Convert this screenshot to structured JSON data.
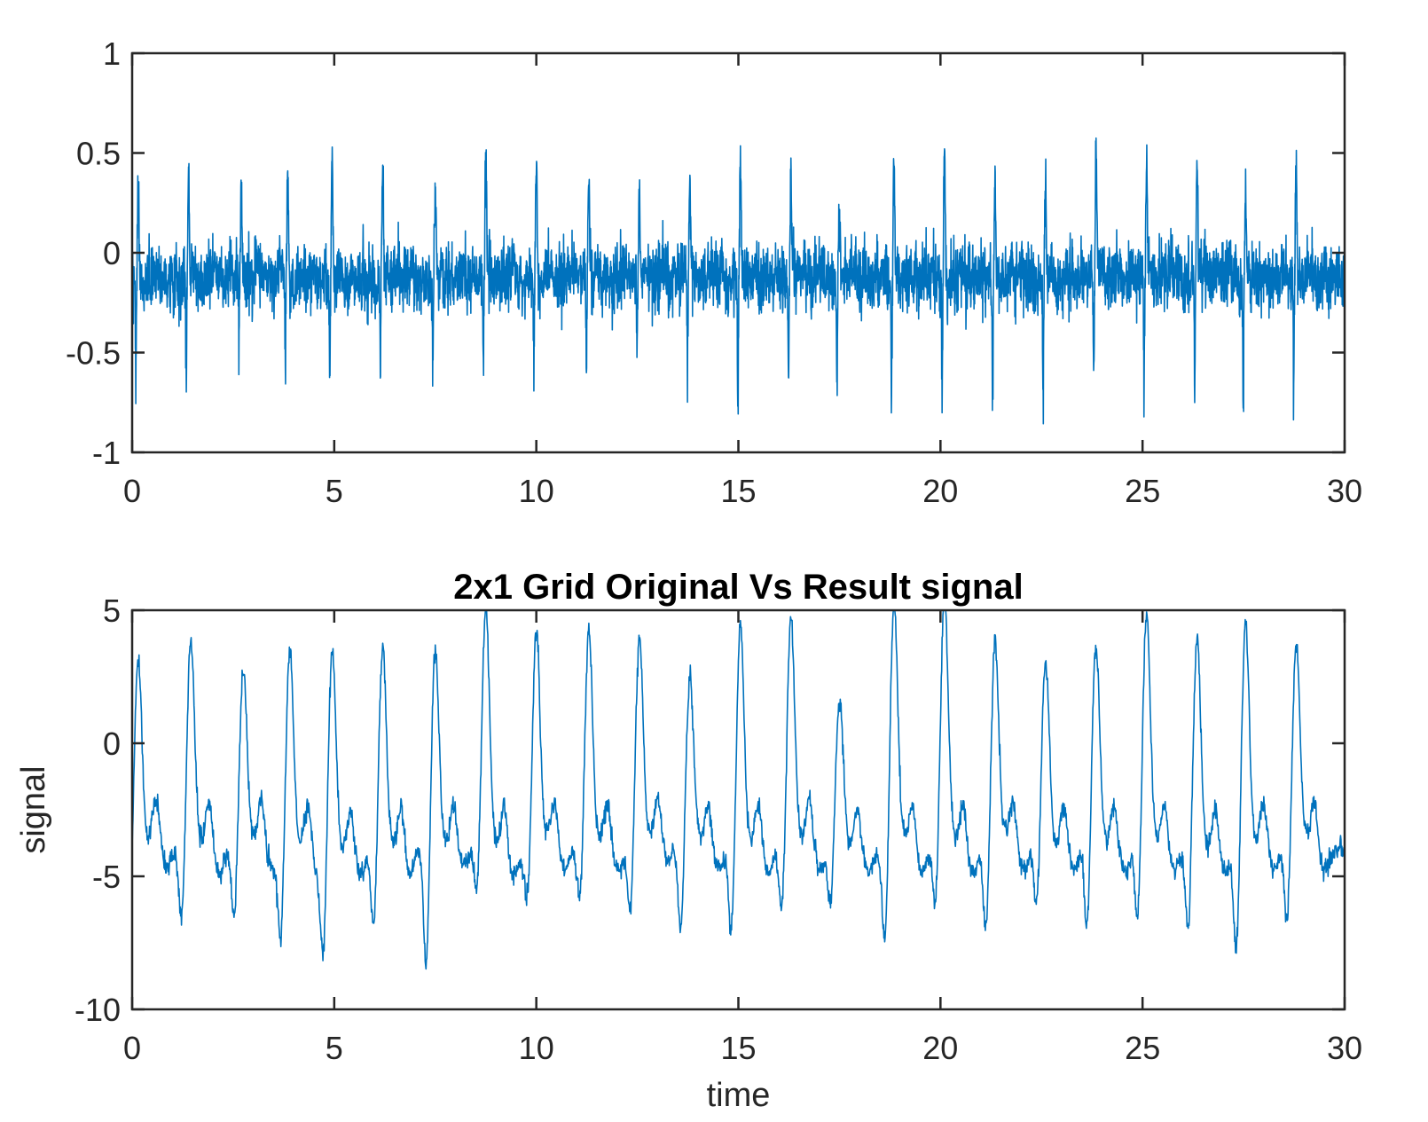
{
  "chart_data": [
    {
      "type": "line",
      "title": "",
      "xlabel": "",
      "ylabel": "",
      "xlim": [
        0,
        30
      ],
      "ylim": [
        -1,
        1
      ],
      "xticks": [
        "0",
        "5",
        "10",
        "15",
        "20",
        "25",
        "30"
      ],
      "yticks": [
        "-1",
        "-0.5",
        "0",
        "0.5",
        "1"
      ],
      "grid": false,
      "color": "#0072BD",
      "beat_times": [
        0.15,
        1.4,
        2.7,
        3.85,
        4.95,
        6.2,
        7.5,
        8.75,
        10.0,
        11.3,
        12.55,
        13.8,
        15.05,
        16.3,
        17.5,
        18.85,
        20.1,
        21.35,
        22.6,
        23.85,
        25.1,
        26.35,
        27.55,
        28.8
      ],
      "beat_peaks": [
        0.45,
        0.4,
        0.37,
        0.44,
        0.53,
        0.42,
        0.28,
        0.56,
        0.55,
        0.41,
        0.38,
        0.39,
        0.49,
        0.45,
        0.28,
        0.57,
        0.62,
        0.4,
        0.41,
        0.5,
        0.49,
        0.52,
        0.4,
        0.43
      ],
      "beat_troughs": [
        -0.9,
        -0.82,
        -0.69,
        -0.85,
        -0.7,
        -0.68,
        -0.72,
        -0.67,
        -0.74,
        -0.73,
        -0.75,
        -0.76,
        -0.95,
        -0.76,
        -0.78,
        -0.95,
        -0.87,
        -0.85,
        -0.94,
        -0.79,
        -0.81,
        -0.79,
        -1.0,
        -0.82
      ],
      "baseline_mean": -0.12,
      "noise_band": [
        -0.4,
        0.2
      ]
    },
    {
      "type": "line",
      "title": "2x1 Grid Original Vs Result signal",
      "xlabel": "time",
      "ylabel": "signal",
      "xlim": [
        0,
        30
      ],
      "ylim": [
        -10,
        5
      ],
      "xticks": [
        "0",
        "5",
        "10",
        "15",
        "20",
        "25",
        "30"
      ],
      "yticks": [
        "-10",
        "-5",
        "0",
        "5"
      ],
      "grid": false,
      "color": "#0072BD",
      "beat_times": [
        0.15,
        1.45,
        2.75,
        3.9,
        4.95,
        6.2,
        7.5,
        8.75,
        10.0,
        11.3,
        12.55,
        13.8,
        15.05,
        16.3,
        17.5,
        18.85,
        20.1,
        21.35,
        22.6,
        23.85,
        25.1,
        26.35,
        27.55,
        28.8
      ],
      "beat_peaks": [
        3.2,
        3.9,
        2.7,
        3.5,
        3.7,
        3.9,
        3.4,
        5.1,
        4.3,
        4.2,
        4.0,
        2.3,
        4.7,
        4.8,
        1.9,
        5.3,
        5.6,
        3.9,
        3.3,
        3.6,
        4.7,
        3.9,
        4.6,
        3.7
      ],
      "beat_troughs": [
        -6.9,
        -6.8,
        -6.7,
        -7.4,
        -7.4,
        -7.1,
        -8.5,
        -6.1,
        -5.8,
        -6.1,
        -6.3,
        -7.5,
        -7.5,
        -6.6,
        -6.1,
        -7.4,
        -6.3,
        -7.2,
        -6.2,
        -7.3,
        -6.9,
        -7.1,
        -8.0,
        -6.9
      ],
      "baseline": -3.8
    }
  ]
}
